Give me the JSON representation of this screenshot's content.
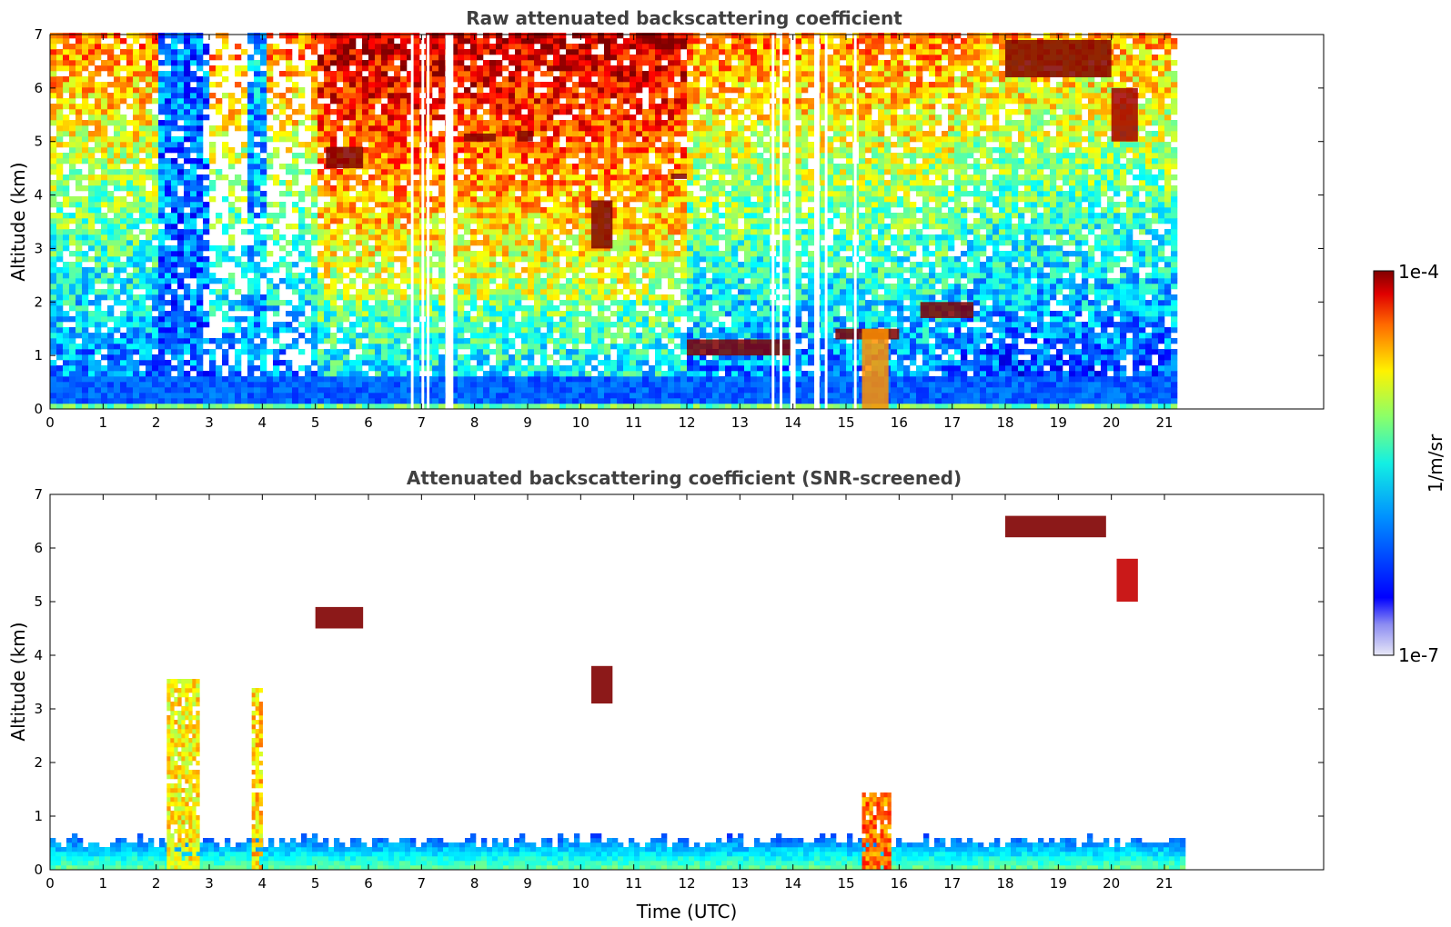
{
  "chart_data": [
    {
      "type": "heatmap",
      "title": "Raw attenuated backscattering coefficient",
      "ylabel": "Altitude (km)",
      "xlabel": "",
      "x_ticks": [
        "0",
        "1",
        "2",
        "3",
        "4",
        "5",
        "6",
        "7",
        "8",
        "9",
        "10",
        "11",
        "12",
        "13",
        "14",
        "15",
        "16",
        "17",
        "18",
        "19",
        "20",
        "21"
      ],
      "y_ticks": [
        "0",
        "1",
        "2",
        "3",
        "4",
        "5",
        "6",
        "7"
      ],
      "xlim": [
        0,
        24
      ],
      "ylim": [
        0,
        7
      ],
      "data_end_time": 21.3,
      "missing_data_gaps": [
        [
          6.8,
          6.85
        ],
        [
          7.0,
          7.05
        ],
        [
          7.1,
          7.15
        ],
        [
          7.45,
          7.6
        ],
        [
          13.6,
          13.65
        ],
        [
          13.75,
          13.8
        ],
        [
          13.95,
          14.05
        ],
        [
          14.4,
          14.5
        ],
        [
          14.6,
          14.65
        ],
        [
          15.15,
          15.2
        ]
      ],
      "features": [
        {
          "kind": "layer",
          "x": [
            5.2,
            5.9
          ],
          "y": [
            4.5,
            4.9
          ],
          "level": 4.0
        },
        {
          "kind": "layer",
          "x": [
            7.8,
            8.4
          ],
          "y": [
            5.0,
            5.15
          ],
          "level": 3.9
        },
        {
          "kind": "layer",
          "x": [
            8.8,
            9.1
          ],
          "y": [
            5.0,
            5.2
          ],
          "level": 3.9
        },
        {
          "kind": "layer",
          "x": [
            10.2,
            10.6
          ],
          "y": [
            3.0,
            3.9
          ],
          "level": 3.3
        },
        {
          "kind": "layer",
          "x": [
            11.7,
            12.0
          ],
          "y": [
            4.3,
            4.4
          ],
          "level": 4.0
        },
        {
          "kind": "layer",
          "x": [
            12.0,
            14.0
          ],
          "y": [
            1.0,
            1.3
          ],
          "level": 4.0
        },
        {
          "kind": "layer",
          "x": [
            14.8,
            16.0
          ],
          "y": [
            1.3,
            1.5
          ],
          "level": 4.0
        },
        {
          "kind": "layer",
          "x": [
            16.4,
            17.4
          ],
          "y": [
            1.7,
            2.0
          ],
          "level": 4.0
        },
        {
          "kind": "layer",
          "x": [
            18.0,
            20.0
          ],
          "y": [
            6.2,
            6.9
          ],
          "level": 3.2
        },
        {
          "kind": "layer",
          "x": [
            20.0,
            20.5
          ],
          "y": [
            5.0,
            6.0
          ],
          "level": 2.9
        },
        {
          "kind": "layer",
          "x": [
            15.3,
            15.8
          ],
          "y": [
            0.0,
            1.5
          ],
          "level": 2.2
        }
      ]
    },
    {
      "type": "heatmap",
      "title": "Attenuated backscattering coefficient (SNR-screened)",
      "ylabel": "Altitude (km)",
      "xlabel": "Time (UTC)",
      "x_ticks": [
        "0",
        "1",
        "2",
        "3",
        "4",
        "5",
        "6",
        "7",
        "8",
        "9",
        "10",
        "11",
        "12",
        "13",
        "14",
        "15",
        "16",
        "17",
        "18",
        "19",
        "20",
        "21"
      ],
      "y_ticks": [
        "0",
        "1",
        "2",
        "3",
        "4",
        "5",
        "6",
        "7"
      ],
      "xlim": [
        0,
        24
      ],
      "ylim": [
        0,
        7
      ],
      "data_end_time": 21.3,
      "features": [
        {
          "kind": "boundary-layer",
          "x": [
            0,
            21.3
          ],
          "y": [
            0,
            0.7
          ],
          "level": 1.5
        },
        {
          "kind": "plume",
          "x": [
            2.2,
            2.8
          ],
          "y": [
            0,
            3.6
          ],
          "level": 1.9
        },
        {
          "kind": "plume",
          "x": [
            3.8,
            3.95
          ],
          "y": [
            0,
            3.4
          ],
          "level": 2.0
        },
        {
          "kind": "plume",
          "x": [
            15.3,
            15.8
          ],
          "y": [
            0,
            1.5
          ],
          "level": 2.3
        },
        {
          "kind": "layer",
          "x": [
            5.0,
            5.9
          ],
          "y": [
            4.5,
            4.9
          ],
          "level": 4.0
        },
        {
          "kind": "layer",
          "x": [
            10.2,
            10.6
          ],
          "y": [
            3.1,
            3.8
          ],
          "level": 3.3
        },
        {
          "kind": "layer",
          "x": [
            18.0,
            19.9
          ],
          "y": [
            6.2,
            6.6
          ],
          "level": 3.2
        },
        {
          "kind": "layer",
          "x": [
            20.1,
            20.5
          ],
          "y": [
            5.0,
            5.8
          ],
          "level": 2.8
        }
      ]
    }
  ],
  "colorbar": {
    "label": "1/m/sr",
    "min_label": "1e-7",
    "max_label": "1e-4",
    "scale": "log",
    "range": [
      1e-07,
      0.0001
    ],
    "colormap": "jet"
  }
}
